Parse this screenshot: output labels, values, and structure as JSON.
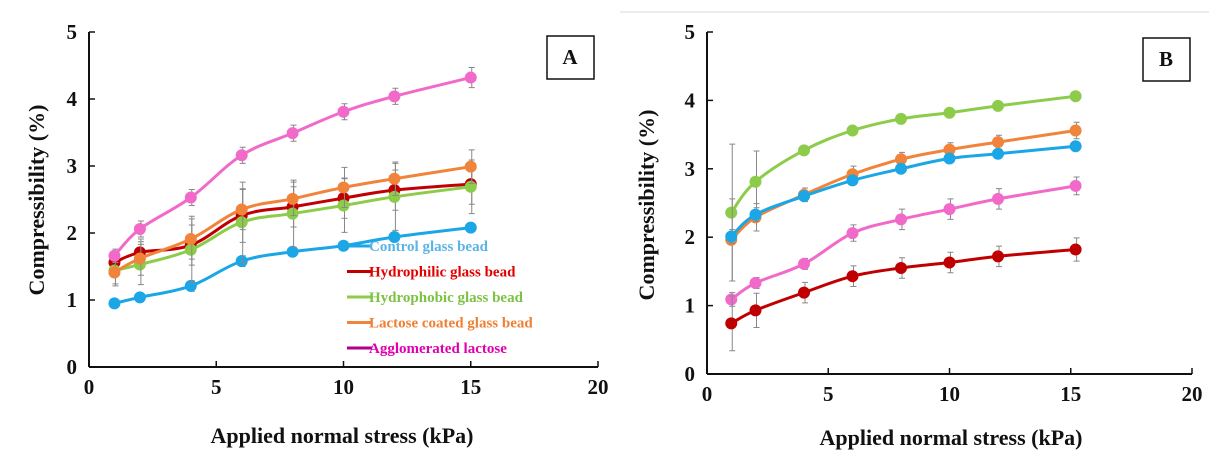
{
  "colors": {
    "control": "#1BA6E6",
    "hydrophilic": "#C00000",
    "hydrophobic": "#8DCC4A",
    "lactose_coated": "#F0843A",
    "agglomerated": "#F26AC9",
    "legend_control_text": "#5BB4E5",
    "legend_hydrophilic_text": "#E00000",
    "legend_hydrophobic_text": "#7CC243",
    "legend_lactose_text": "#EE7F33",
    "legend_agglomerated_text": "#E000B0",
    "legend_agglomerated_line": "#B0008C",
    "error_bar": "#888888"
  },
  "chart_data": [
    {
      "type": "line",
      "panel_label": "A",
      "xlabel": "Applied normal stress (kPa)",
      "ylabel": "Compressibility (%)",
      "xlim": [
        0,
        20
      ],
      "ylim": [
        0,
        5
      ],
      "xticks": [
        0,
        5,
        10,
        15,
        20
      ],
      "yticks": [
        0,
        1,
        2,
        3,
        4,
        5
      ],
      "grid": false,
      "legend_position": "bottom-right",
      "series": [
        {
          "name": "Control glass bead",
          "color_key": "control",
          "x": [
            1,
            2,
            4,
            6,
            8,
            10,
            12,
            15
          ],
          "y": [
            0.95,
            1.04,
            1.21,
            1.58,
            1.72,
            1.81,
            1.94,
            2.08
          ],
          "err": [
            0.05,
            0.05,
            0.08,
            0.08,
            0.05,
            0.05,
            0.05,
            0.05
          ]
        },
        {
          "name": "Hydrophilic glass bead",
          "color_key": "hydrophilic",
          "x": [
            1,
            2,
            4,
            6,
            8,
            10,
            12,
            15
          ],
          "y": [
            1.56,
            1.71,
            1.82,
            2.26,
            2.39,
            2.52,
            2.64,
            2.73
          ],
          "err": [
            0.15,
            0.2,
            0.3,
            0.4,
            0.3,
            0.3,
            0.3,
            0.3
          ]
        },
        {
          "name": "Hydrophobic glass bead",
          "color_key": "hydrophobic",
          "x": [
            1,
            2,
            4,
            6,
            8,
            10,
            12,
            15
          ],
          "y": [
            1.44,
            1.53,
            1.75,
            2.16,
            2.29,
            2.41,
            2.54,
            2.69
          ],
          "err": [
            0.2,
            0.3,
            0.5,
            0.6,
            0.5,
            0.4,
            0.5,
            0.4
          ]
        },
        {
          "name": "Lactose coated glass bead",
          "color_key": "lactose_coated",
          "x": [
            1,
            2,
            4,
            6,
            8,
            10,
            12,
            15
          ],
          "y": [
            1.41,
            1.62,
            1.91,
            2.35,
            2.51,
            2.68,
            2.81,
            2.99
          ],
          "err": [
            0.2,
            0.25,
            0.3,
            0.3,
            0.25,
            0.3,
            0.25,
            0.25
          ]
        },
        {
          "name": "Agglomerated lactose",
          "color_key": "agglomerated",
          "x": [
            1,
            2,
            4,
            6,
            8,
            10,
            12,
            15
          ],
          "y": [
            1.66,
            2.06,
            2.53,
            3.16,
            3.49,
            3.81,
            4.04,
            4.32
          ],
          "err": [
            0.1,
            0.12,
            0.12,
            0.12,
            0.12,
            0.12,
            0.12,
            0.15
          ]
        }
      ]
    },
    {
      "type": "line",
      "panel_label": "B",
      "xlabel": "Applied normal stress (kPa)",
      "ylabel": "Compressibility (%)",
      "xlim": [
        0,
        20
      ],
      "ylim": [
        0,
        5
      ],
      "xticks": [
        0,
        5,
        10,
        15,
        20
      ],
      "yticks": [
        0,
        1,
        2,
        3,
        4,
        5
      ],
      "grid": false,
      "series": [
        {
          "color_key": "hydrophobic",
          "x": [
            1,
            2,
            4,
            6,
            8,
            10,
            12,
            15.2
          ],
          "y": [
            2.36,
            2.81,
            3.27,
            3.56,
            3.73,
            3.82,
            3.92,
            4.06
          ],
          "err": [
            1.0,
            0.45,
            0.05,
            0.05,
            0.05,
            0.05,
            0.05,
            0.05
          ]
        },
        {
          "color_key": "lactose_coated",
          "x": [
            1,
            2,
            4,
            6,
            8,
            10,
            12,
            15.2
          ],
          "y": [
            1.96,
            2.29,
            2.62,
            2.92,
            3.14,
            3.28,
            3.39,
            3.56
          ],
          "err": [
            0.6,
            0.2,
            0.1,
            0.12,
            0.1,
            0.1,
            0.1,
            0.12
          ]
        },
        {
          "color_key": "control",
          "x": [
            1,
            2,
            4,
            6,
            8,
            10,
            12,
            15.2
          ],
          "y": [
            2.01,
            2.33,
            2.6,
            2.83,
            3.0,
            3.15,
            3.22,
            3.33
          ],
          "err": [
            0.1,
            0.1,
            0.05,
            0.05,
            0.05,
            0.05,
            0.05,
            0.05
          ]
        },
        {
          "color_key": "agglomerated",
          "x": [
            1,
            2,
            4,
            6,
            8,
            10,
            12,
            15.2
          ],
          "y": [
            1.09,
            1.33,
            1.61,
            2.06,
            2.26,
            2.41,
            2.56,
            2.75
          ],
          "err": [
            0.1,
            0.08,
            0.08,
            0.12,
            0.15,
            0.15,
            0.15,
            0.13
          ]
        },
        {
          "color_key": "hydrophilic",
          "x": [
            1,
            2,
            4,
            6,
            8,
            10,
            12,
            15.2
          ],
          "y": [
            0.74,
            0.93,
            1.19,
            1.43,
            1.55,
            1.63,
            1.72,
            1.82
          ],
          "err": [
            0.4,
            0.25,
            0.15,
            0.15,
            0.15,
            0.15,
            0.15,
            0.17
          ]
        }
      ]
    }
  ]
}
